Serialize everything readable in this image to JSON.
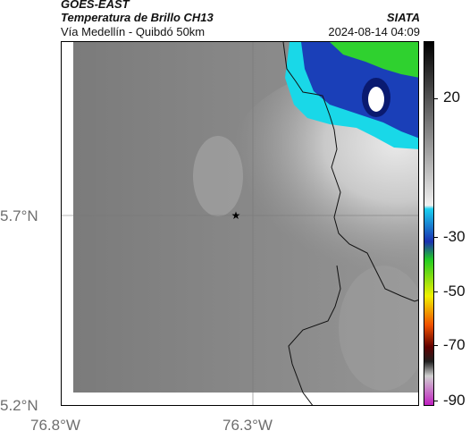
{
  "header": {
    "satellite": "GOES-EAST",
    "product": "Temperatura de Brillo CH13",
    "route": "Vía Medellín - Quibdó 50km",
    "org": "SIATA",
    "timestamp": "2024-08-14 04:09"
  },
  "axes": {
    "y_labels": [
      "5.7°N",
      "5.2°N"
    ],
    "x_labels": [
      "76.8°W",
      "76.3°W"
    ]
  },
  "colorbar": {
    "labels": [
      "20",
      "-30",
      "-50",
      "-70",
      "-90"
    ]
  },
  "marker": {
    "icon": "star-icon"
  },
  "colors": {
    "cloud_cyan": "#19d8e8",
    "cloud_blue": "#1a3fb8",
    "cloud_green": "#2fd12f",
    "background_gray": "#8e8e8e"
  }
}
